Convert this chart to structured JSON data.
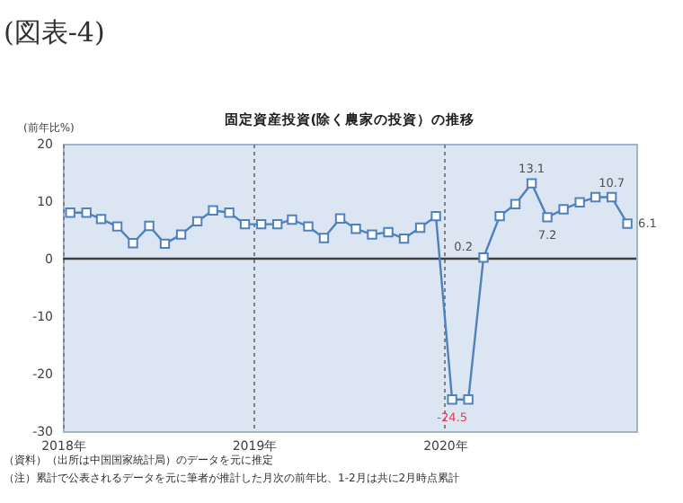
{
  "chart_data": {
    "type": "line",
    "title": "固定資産投資(除く農家の投資）の推移",
    "ylabel": "(前年比%)",
    "x": [
      "2018-01-15",
      "2018-02-15",
      "2018-03-15",
      "2018-04-15",
      "2018-05-15",
      "2018-06-15",
      "2018-07-15",
      "2018-08-15",
      "2018-09-15",
      "2018-10-15",
      "2018-11-15",
      "2018-12-15",
      "2019-01-15",
      "2019-02-15",
      "2019-03-15",
      "2019-04-15",
      "2019-05-15",
      "2019-06-15",
      "2019-07-15",
      "2019-08-15",
      "2019-09-15",
      "2019-10-15",
      "2019-11-15",
      "2019-12-15",
      "2020-01-15",
      "2020-02-15",
      "2020-03-15",
      "2020-04-15",
      "2020-05-15",
      "2020-06-15",
      "2020-07-15",
      "2020-08-15",
      "2020-09-15",
      "2020-10-15",
      "2020-11-15",
      "2020-12-15"
    ],
    "series": [
      {
        "color": "#4f81bd",
        "values": [
          8.0,
          8.0,
          6.9,
          5.6,
          2.7,
          5.7,
          2.6,
          4.2,
          6.5,
          8.4,
          8.0,
          6.0,
          6.0,
          6.0,
          6.8,
          5.6,
          3.6,
          7.0,
          5.2,
          4.2,
          4.6,
          3.5,
          5.4,
          7.4,
          -24.5,
          -24.5,
          0.2,
          7.4,
          9.5,
          13.1,
          7.2,
          8.6,
          9.8,
          10.7,
          10.7,
          6.1
        ],
        "value_labels": [
          null,
          null,
          null,
          null,
          null,
          null,
          null,
          null,
          null,
          null,
          null,
          null,
          null,
          null,
          null,
          null,
          null,
          null,
          null,
          null,
          null,
          null,
          null,
          null,
          "-24.5",
          null,
          "0.2",
          null,
          null,
          "13.1",
          "7.2",
          null,
          null,
          null,
          "10.7",
          "6.1"
        ]
      }
    ],
    "xlim": [
      "2018-01-01",
      "2021-01-01"
    ],
    "xticks": [
      {
        "value": "2018-01-01",
        "label": "2018年"
      },
      {
        "value": "2019-01-01",
        "label": "2019年"
      },
      {
        "value": "2020-01-01",
        "label": "2020年"
      }
    ],
    "ylim": [
      -30,
      20
    ],
    "yticks": [
      -30,
      -20,
      -10,
      0,
      10,
      20
    ],
    "grid": "x",
    "marker": "square",
    "line_style": "solid",
    "ref_lines": [
      {
        "axis": "y",
        "value": 0,
        "color": "#404040"
      }
    ],
    "annotations": [
      "(図表-4)",
      "（資料）（出所は中国国家統計局）のデータを元に推定",
      "（注）累計で公表されるデータを元に筆者が推計した月次の前年比、1-2月は共に2月時点累計"
    ]
  }
}
